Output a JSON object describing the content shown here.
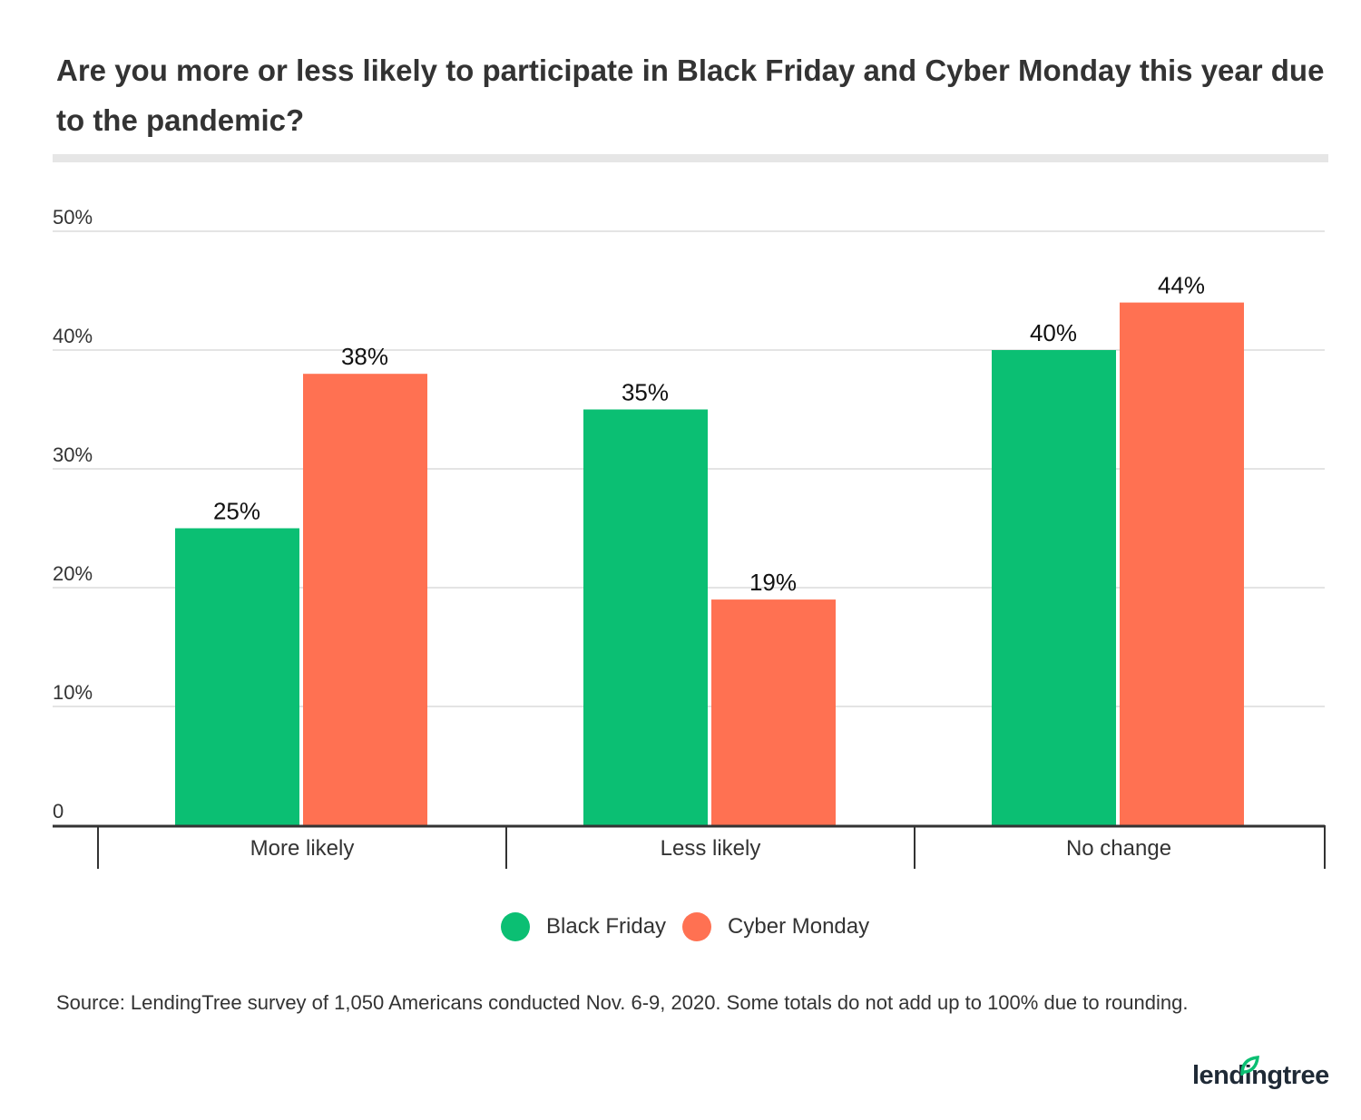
{
  "chart_data": {
    "type": "bar",
    "title": "Are you more or less likely to participate in Black Friday and Cyber Monday this year due to the pandemic?",
    "categories": [
      "More likely",
      "Less likely",
      "No change"
    ],
    "series": [
      {
        "name": "Black Friday",
        "values": [
          25,
          35,
          40
        ],
        "labels": [
          "25%",
          "35%",
          "40%"
        ],
        "color": "#0bbf73"
      },
      {
        "name": "Cyber Monday",
        "values": [
          38,
          19,
          44
        ],
        "labels": [
          "38%",
          "19%",
          "44%"
        ],
        "color": "#ff7152"
      }
    ],
    "yticks": [
      0,
      10,
      20,
      30,
      40,
      50
    ],
    "ytick_labels": [
      "0",
      "10%",
      "20%",
      "30%",
      "40%",
      "50%"
    ],
    "ylim": [
      0,
      50
    ],
    "xlabel": "",
    "ylabel": "",
    "grid": true,
    "legend_position": "bottom"
  },
  "source": "Source: LendingTree survey of 1,050 Americans conducted Nov. 6-9, 2020. Some totals do not add up to 100% due to rounding.",
  "logo": {
    "text": "lendingtree",
    "icon": "leaf-icon",
    "color": "#0bbf73"
  }
}
